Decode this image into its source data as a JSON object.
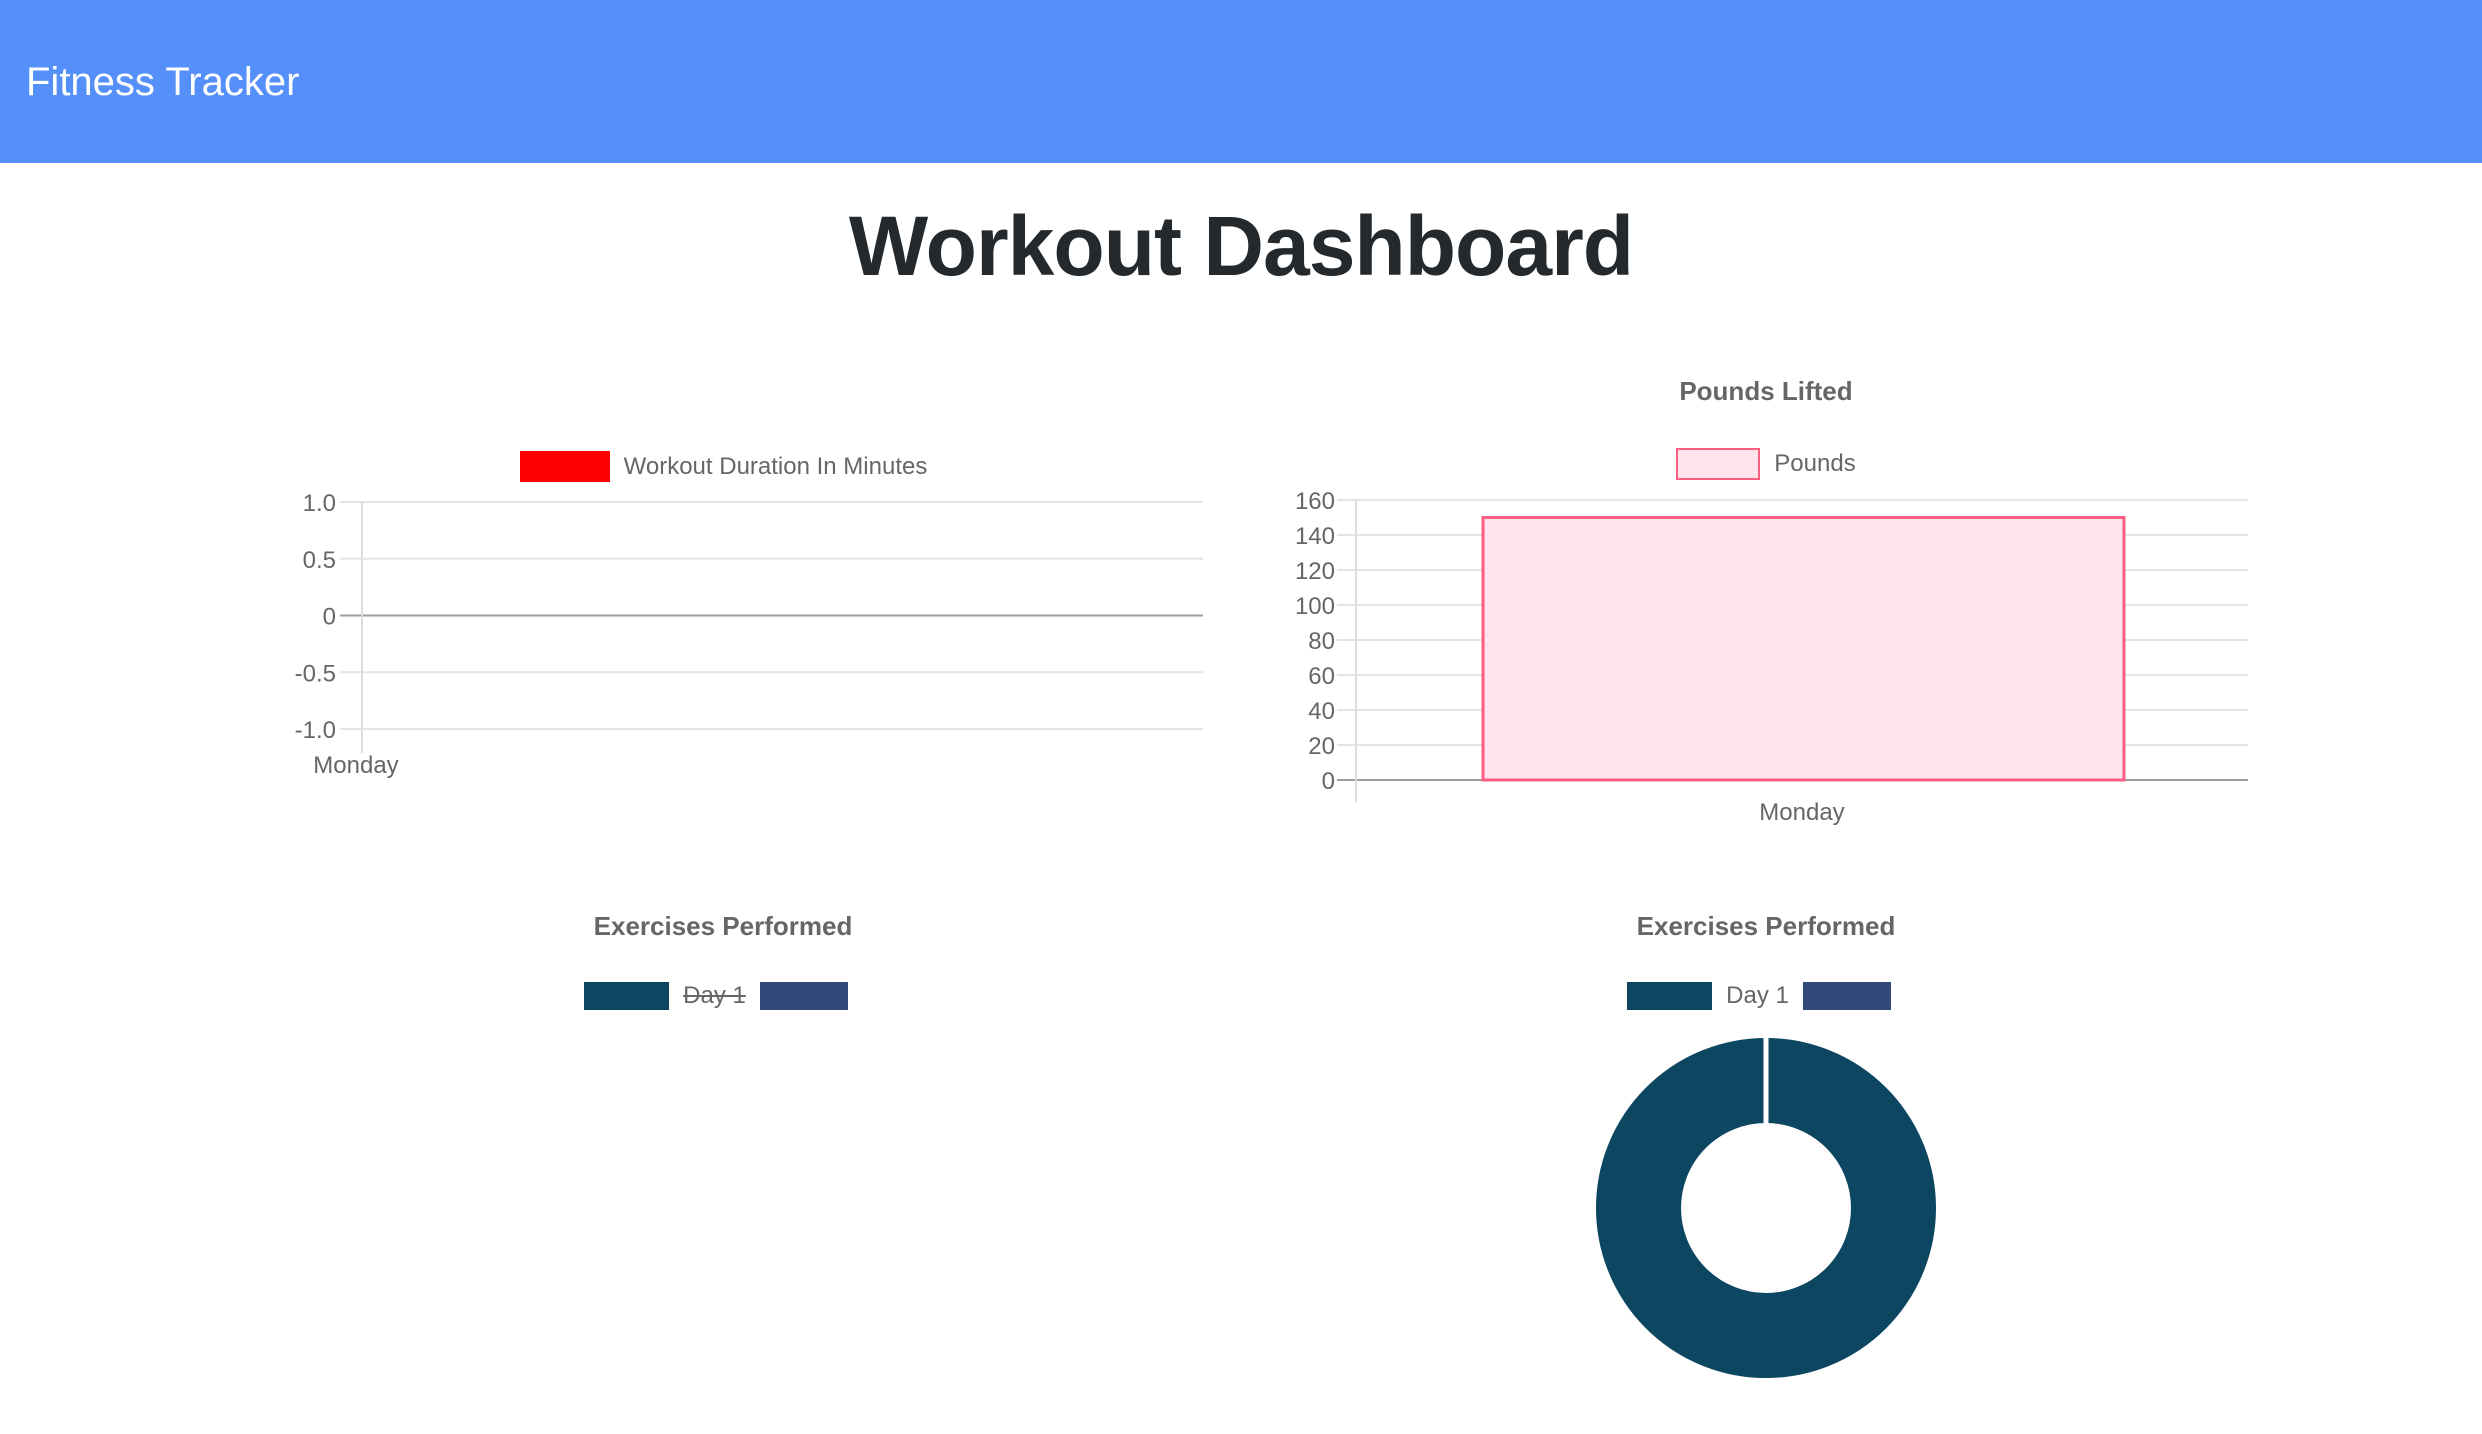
{
  "header": {
    "app_title": "Fitness Tracker",
    "bg_color": "#5590FA",
    "text_color": "#FFFFFF"
  },
  "page": {
    "title": "Workout Dashboard",
    "title_color": "#24292E"
  },
  "theme": {
    "chart_text_color": "#666666",
    "grid_color": "#E4E4E4",
    "zero_line_color": "#9E9E9E",
    "axis_line_color": "#DCDCDC"
  },
  "chart_data": [
    {
      "id": "workout-duration",
      "type": "line",
      "title": "",
      "legend_position": "top",
      "categories": [
        "Monday"
      ],
      "series": [
        {
          "name": "Workout Duration In Minutes",
          "color": "#FF0000",
          "values": []
        }
      ],
      "ylim": [
        -1.0,
        1.0
      ],
      "yticks": [
        "1.0",
        "0.5",
        "0",
        "-0.5",
        "-1.0"
      ],
      "grid": true
    },
    {
      "id": "pounds-lifted",
      "type": "bar",
      "title": "Pounds Lifted",
      "legend_position": "top",
      "categories": [
        "Monday"
      ],
      "series": [
        {
          "name": "Pounds",
          "values": [
            150
          ],
          "fill": "#FDE3EB",
          "border": "#FB5E81"
        }
      ],
      "ylim": [
        0,
        160
      ],
      "yticks": [
        "160",
        "140",
        "120",
        "100",
        "80",
        "60",
        "40",
        "20",
        "0"
      ],
      "grid": true
    },
    {
      "id": "exercises-performed-pie",
      "type": "pie",
      "title": "Exercises Performed",
      "legend_position": "top",
      "labels": [
        "Day 1",
        ""
      ],
      "values": [],
      "colors": [
        "#0C4660",
        "#33497B"
      ],
      "legend": [
        {
          "label": "Day 1",
          "color": "#0C4660",
          "hidden": true
        },
        {
          "label": "",
          "color": "#33497B",
          "hidden": false
        }
      ]
    },
    {
      "id": "exercises-performed-doughnut",
      "type": "doughnut",
      "title": "Exercises Performed",
      "legend_position": "top",
      "labels": [
        "Day 1",
        ""
      ],
      "values": [
        1,
        0
      ],
      "colors": [
        "#0C4660",
        "#33497B"
      ],
      "legend": [
        {
          "label": "Day 1",
          "color": "#0C4660",
          "hidden": false
        },
        {
          "label": "",
          "color": "#33497B",
          "hidden": false
        }
      ]
    }
  ]
}
